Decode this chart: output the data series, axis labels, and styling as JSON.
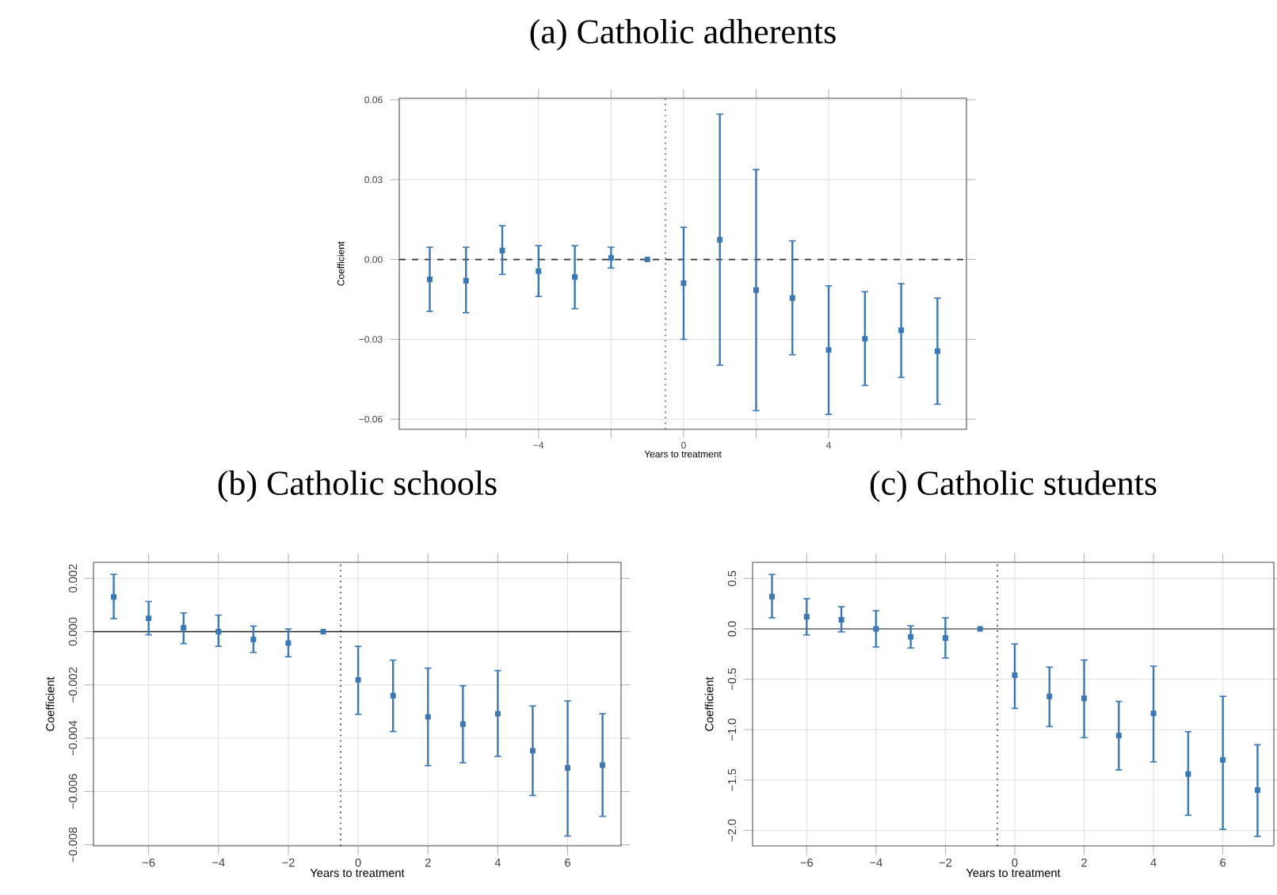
{
  "chart_data": [
    {
      "type": "scatter",
      "title": "(a) Catholic adherents",
      "xlabel": "Years to treatment",
      "ylabel": "Coefficient",
      "marker": "square",
      "grid": true,
      "x": [
        -7,
        -6,
        -5,
        -4,
        -3,
        -2,
        -1,
        0,
        1,
        2,
        3,
        4,
        5,
        6,
        7
      ],
      "xlim": [
        -7.84,
        7.8
      ],
      "ylim": [
        -0.0638,
        0.0606
      ],
      "xticks": [
        {
          "value": -6,
          "label": null
        },
        {
          "value": -4,
          "label": "−4"
        },
        {
          "value": -2,
          "label": null
        },
        0,
        {
          "value": 2,
          "label": null
        },
        4,
        {
          "value": 6,
          "label": null
        }
      ],
      "yticks": [
        {
          "value": -0.06,
          "label": "−0.06"
        },
        {
          "value": -0.03,
          "label": "−0.03"
        },
        {
          "value": 0,
          "label": "0.00"
        },
        {
          "value": 0.03,
          "label": "0.03"
        },
        {
          "value": 0.06,
          "label": "0.06"
        }
      ],
      "ref_lines": [
        {
          "axis": "y",
          "value": 0,
          "color": "#333333",
          "line_style": "dashed"
        },
        {
          "axis": "x",
          "value": -0.5,
          "color": "#555555",
          "line_style": "dotted"
        }
      ],
      "series": [
        {
          "color": "#3a78b5",
          "values": [
            -0.0075,
            -0.008,
            0.0034,
            -0.0044,
            -0.0066,
            0.0006,
            0,
            -0.0089,
            0.0074,
            -0.0115,
            -0.0145,
            -0.034,
            -0.0298,
            -0.0266,
            -0.0344
          ],
          "errors": [
            [
              -0.0195,
              0.0046
            ],
            [
              -0.02,
              0.0046
            ],
            [
              -0.0056,
              0.0127
            ],
            [
              -0.0139,
              0.0052
            ],
            [
              -0.0185,
              0.0052
            ],
            [
              -0.0032,
              0.0046
            ],
            null,
            [
              -0.03,
              0.0121
            ],
            [
              -0.0397,
              0.0546
            ],
            [
              -0.0568,
              0.0338
            ],
            [
              -0.0358,
              0.007
            ],
            [
              -0.0582,
              -0.0099
            ],
            [
              -0.0473,
              -0.0121
            ],
            [
              -0.0443,
              -0.0091
            ],
            [
              -0.0544,
              -0.0145
            ]
          ]
        }
      ]
    },
    {
      "type": "scatter",
      "title": "(b) Catholic schools",
      "xlabel": "Years to treatment",
      "ylabel": "Coefficient",
      "marker": "square",
      "grid": true,
      "x": [
        -7,
        -6,
        -5,
        -4,
        -3,
        -2,
        -1,
        0,
        1,
        2,
        3,
        4,
        5,
        6,
        7
      ],
      "xlim": [
        -7.58,
        7.53
      ],
      "ylim": [
        -0.00804,
        0.0026
      ],
      "xticks": [
        {
          "value": -6,
          "label": "−6"
        },
        {
          "value": -4,
          "label": "−4"
        },
        {
          "value": -2,
          "label": "−2"
        },
        0,
        2,
        4,
        6
      ],
      "yticks": [
        {
          "value": -0.008,
          "label": "−0.008"
        },
        {
          "value": -0.006,
          "label": "−0.006"
        },
        {
          "value": -0.004,
          "label": "−0.004"
        },
        {
          "value": -0.002,
          "label": "−0.002"
        },
        {
          "value": 0,
          "label": "0.000"
        },
        {
          "value": 0.002,
          "label": "0.002"
        }
      ],
      "ref_lines": [
        {
          "axis": "y",
          "value": 0,
          "color": "#222222",
          "line_style": "solid"
        },
        {
          "axis": "x",
          "value": -0.5,
          "color": "#222222",
          "line_style": "dotted"
        }
      ],
      "series": [
        {
          "color": "#3a78b5",
          "values": [
            0.0013,
            0.0005,
            0.00014,
            0,
            -0.00029,
            -0.00043,
            0,
            -0.00181,
            -0.0024,
            -0.0032,
            -0.00347,
            -0.00308,
            -0.00447,
            -0.00511,
            -0.00501
          ],
          "errors": [
            [
              0.00049,
              0.00215
            ],
            [
              -0.00012,
              0.00113
            ],
            [
              -0.00045,
              0.0007
            ],
            [
              -0.00055,
              0.00062
            ],
            [
              -0.00078,
              0.00021
            ],
            [
              -0.00094,
              0.0001
            ],
            null,
            [
              -0.0031,
              -0.00055
            ],
            [
              -0.00375,
              -0.00107
            ],
            [
              -0.00503,
              -0.00137
            ],
            [
              -0.00492,
              -0.00203
            ],
            [
              -0.00468,
              -0.00146
            ],
            [
              -0.00615,
              -0.00279
            ],
            [
              -0.00767,
              -0.0026
            ],
            [
              -0.00693,
              -0.00308
            ]
          ]
        }
      ]
    },
    {
      "type": "scatter",
      "title": "(c) Catholic students",
      "xlabel": "Years to treatment",
      "ylabel": "Coefficient",
      "marker": "square",
      "grid": true,
      "x": [
        -7,
        -6,
        -5,
        -4,
        -3,
        -2,
        -1,
        0,
        1,
        2,
        3,
        4,
        5,
        6,
        7
      ],
      "xlim": [
        -7.56,
        7.47
      ],
      "ylim": [
        -2.154,
        0.66
      ],
      "xticks": [
        {
          "value": -6,
          "label": "−6"
        },
        {
          "value": -4,
          "label": "−4"
        },
        {
          "value": -2,
          "label": "−2"
        },
        0,
        2,
        4,
        6
      ],
      "yticks": [
        {
          "value": -2,
          "label": "−2.0"
        },
        {
          "value": -1.5,
          "label": "−1.5"
        },
        {
          "value": -1,
          "label": "−1.0"
        },
        {
          "value": -0.5,
          "label": "−0.5"
        },
        {
          "value": 0,
          "label": "0.0"
        },
        {
          "value": 0.5,
          "label": "0.5"
        }
      ],
      "ref_lines": [
        {
          "axis": "y",
          "value": 0,
          "color": "#666666",
          "line_style": "solid"
        },
        {
          "axis": "x",
          "value": -0.5,
          "color": "#222222",
          "line_style": "dotted"
        }
      ],
      "series": [
        {
          "color": "#3a78b5",
          "values": [
            0.32,
            0.12,
            0.09,
            0,
            -0.08,
            -0.09,
            0,
            -0.46,
            -0.67,
            -0.69,
            -1.06,
            -0.84,
            -1.44,
            -1.3,
            -1.6
          ],
          "errors": [
            [
              0.11,
              0.54
            ],
            [
              -0.06,
              0.3
            ],
            [
              -0.03,
              0.22
            ],
            [
              -0.18,
              0.18
            ],
            [
              -0.19,
              0.03
            ],
            [
              -0.29,
              0.11
            ],
            null,
            [
              -0.79,
              -0.15
            ],
            [
              -0.97,
              -0.38
            ],
            [
              -1.08,
              -0.31
            ],
            [
              -1.4,
              -0.72
            ],
            [
              -1.32,
              -0.37
            ],
            [
              -1.85,
              -1.02
            ],
            [
              -1.99,
              -0.67
            ],
            [
              -2.06,
              -1.15
            ]
          ]
        }
      ]
    }
  ]
}
